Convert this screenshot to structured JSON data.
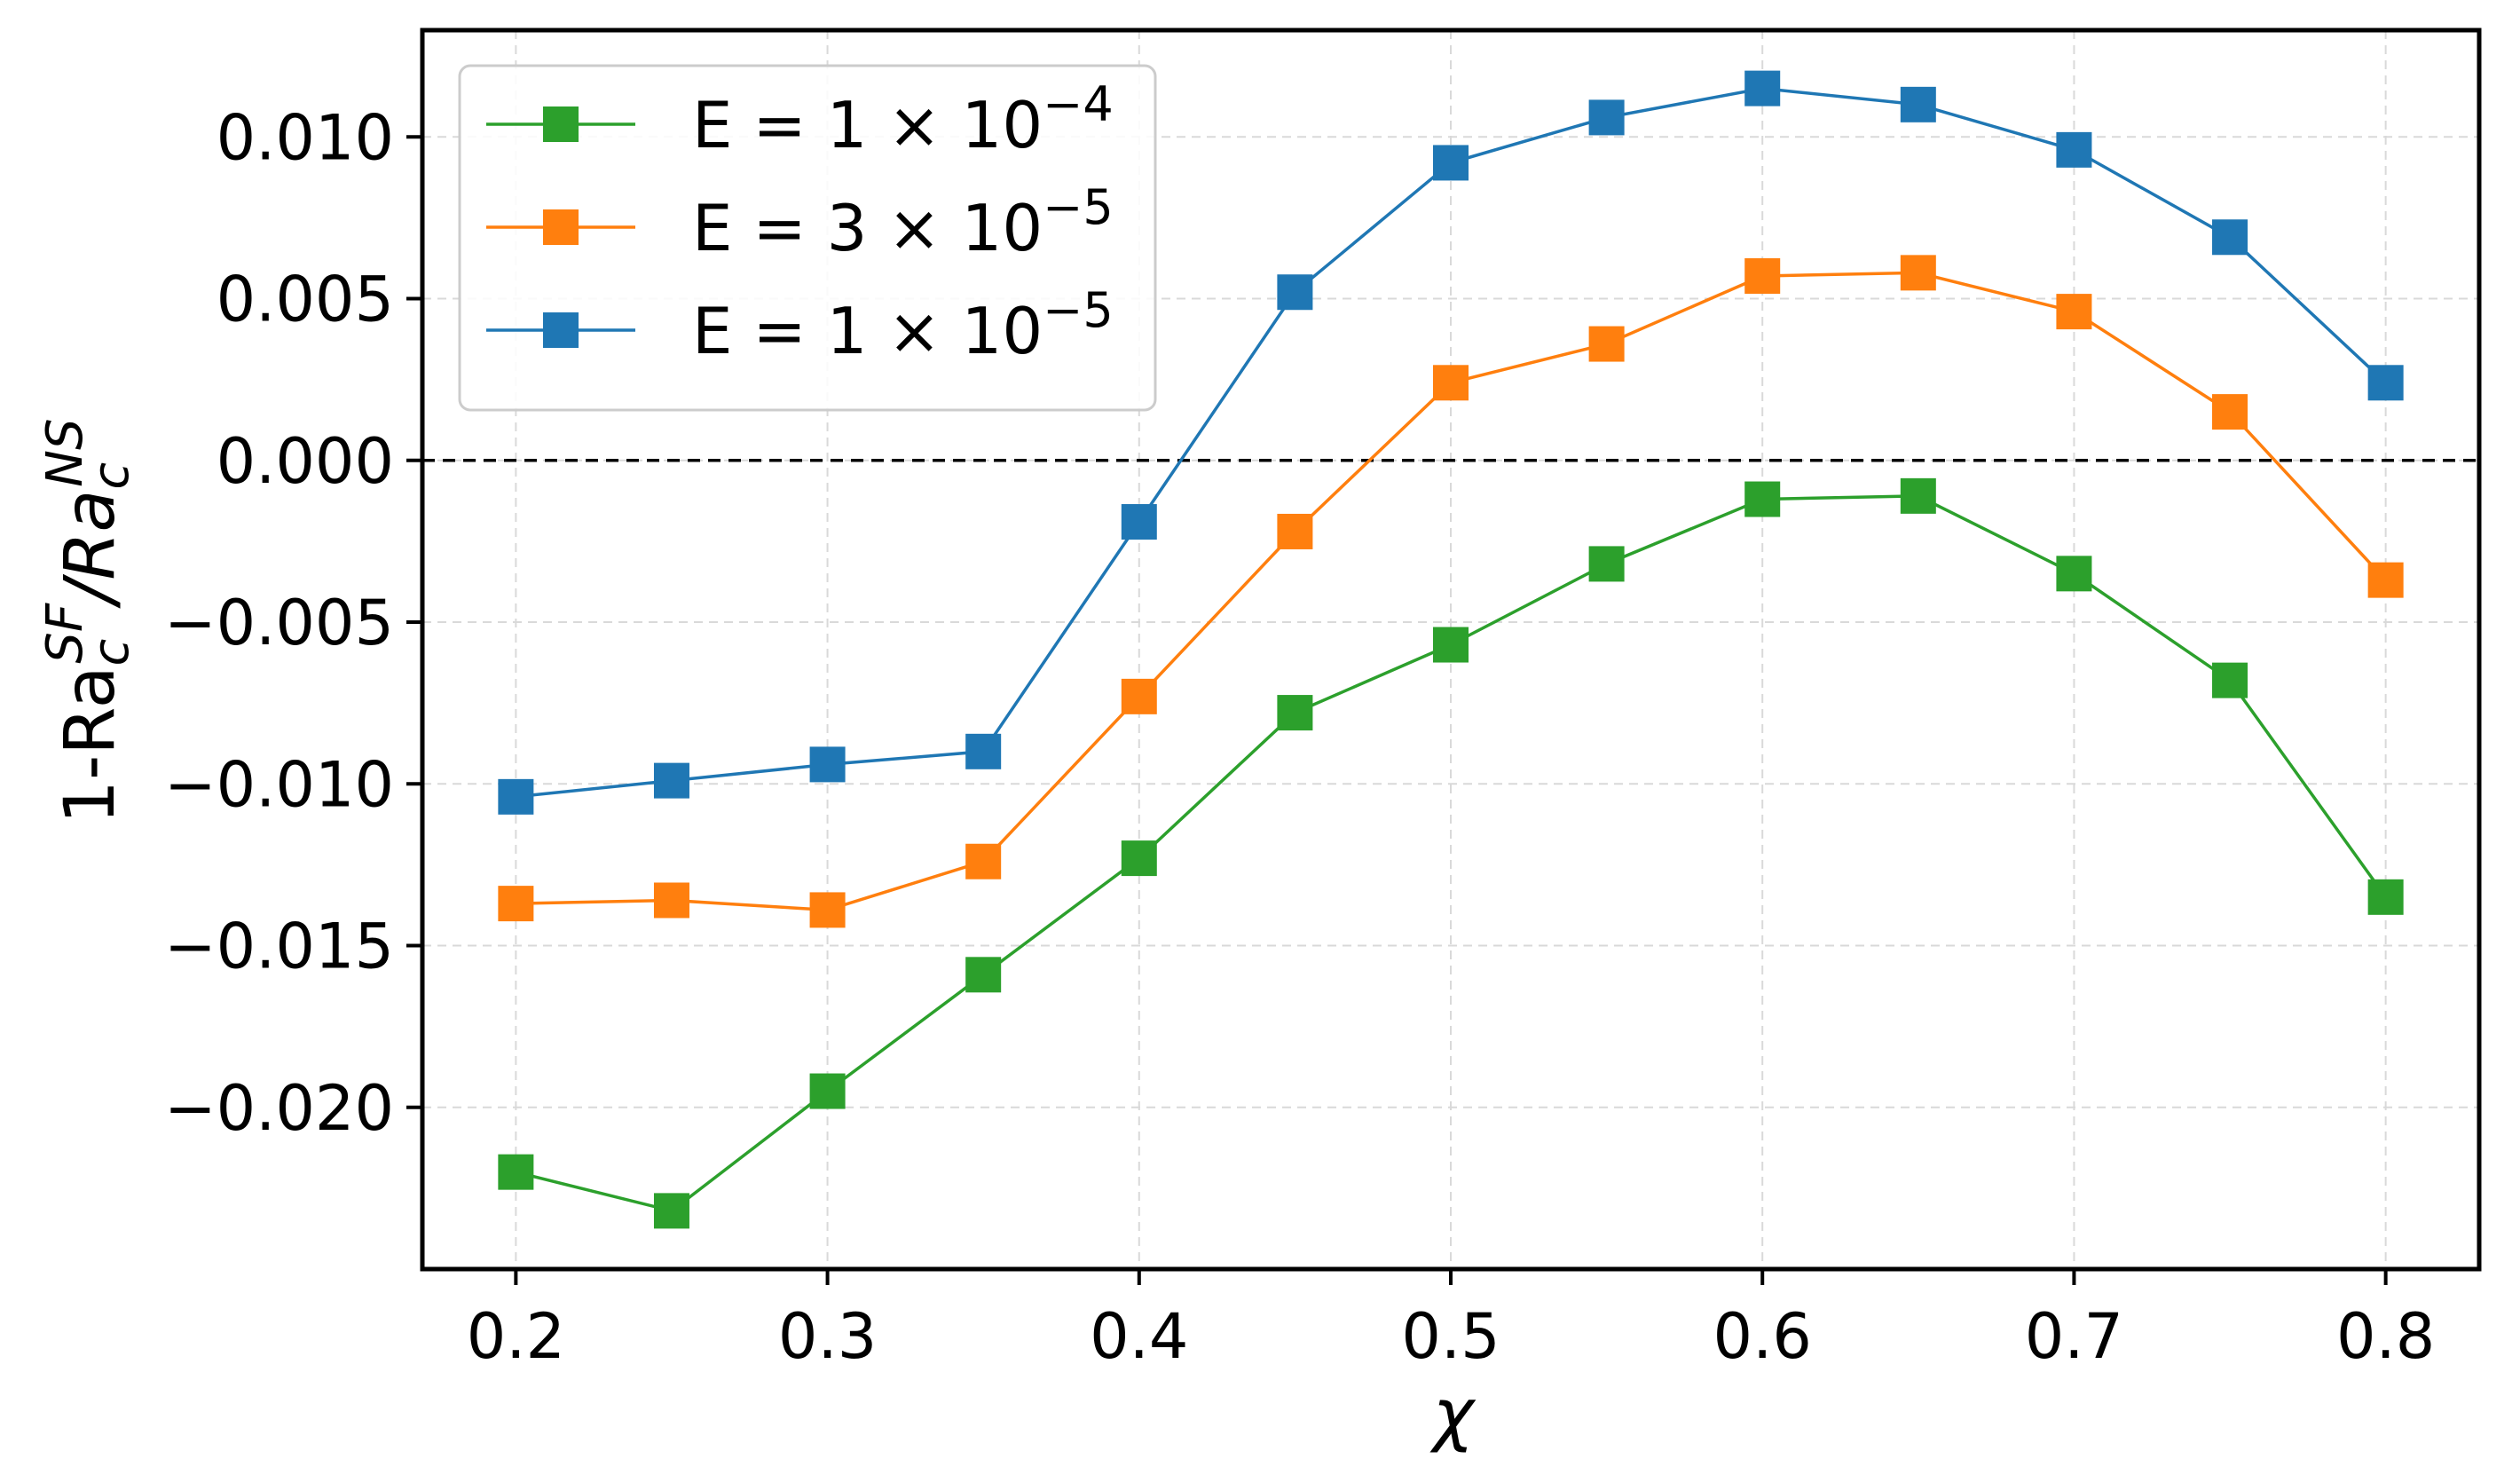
{
  "chart_data": {
    "type": "line",
    "title": "",
    "xlabel": "χ",
    "ylabel_main": "1-Ra",
    "ylabel_sub1": "c",
    "ylabel_sup1": "SF",
    "ylabel_slash": "/Ra",
    "ylabel_sub2": "c",
    "ylabel_sup2": "NS",
    "x": [
      0.2,
      0.25,
      0.3,
      0.35,
      0.4,
      0.45,
      0.5,
      0.55,
      0.6,
      0.65,
      0.7,
      0.75,
      0.8
    ],
    "xlim": [
      0.17,
      0.83
    ],
    "ylim": [
      -0.025,
      0.0133
    ],
    "xticks": [
      0.2,
      0.3,
      0.4,
      0.5,
      0.6,
      0.7,
      0.8
    ],
    "xtick_labels": [
      "0.2",
      "0.3",
      "0.4",
      "0.5",
      "0.6",
      "0.7",
      "0.8"
    ],
    "yticks": [
      0.01,
      0.005,
      0.0,
      -0.005,
      -0.01,
      -0.015,
      -0.02
    ],
    "ytick_labels": [
      "0.010",
      "0.005",
      "0.000",
      "−0.005",
      "−0.010",
      "−0.015",
      "−0.020"
    ],
    "grid": true,
    "reference_line_y": 0.0,
    "legend_position": "upper-left",
    "series": [
      {
        "name": "E = 1 × 10−4",
        "label_base": "E = 1 × 10",
        "label_exp": "−4",
        "color": "#2ca02c",
        "values": [
          -0.022,
          -0.0232,
          -0.0195,
          -0.0159,
          -0.0123,
          -0.0078,
          -0.0057,
          -0.0032,
          -0.0012,
          -0.0011,
          -0.0035,
          -0.0068,
          -0.0135
        ]
      },
      {
        "name": "E = 3 × 10−5",
        "label_base": "E = 3 × 10",
        "label_exp": "−5",
        "color": "#ff7f0e",
        "values": [
          -0.0137,
          -0.0136,
          -0.0139,
          -0.0124,
          -0.0073,
          -0.0022,
          0.0024,
          0.0036,
          0.0057,
          0.0058,
          0.0046,
          0.0015,
          -0.0037
        ]
      },
      {
        "name": "E = 1 × 10−5",
        "label_base": "E = 1 × 10",
        "label_exp": "−5",
        "color": "#1f77b4",
        "values": [
          -0.0104,
          -0.0099,
          -0.0094,
          -0.009,
          -0.0019,
          0.0052,
          0.0092,
          0.0106,
          0.0115,
          0.011,
          0.0096,
          0.0069,
          0.0024
        ]
      }
    ]
  }
}
